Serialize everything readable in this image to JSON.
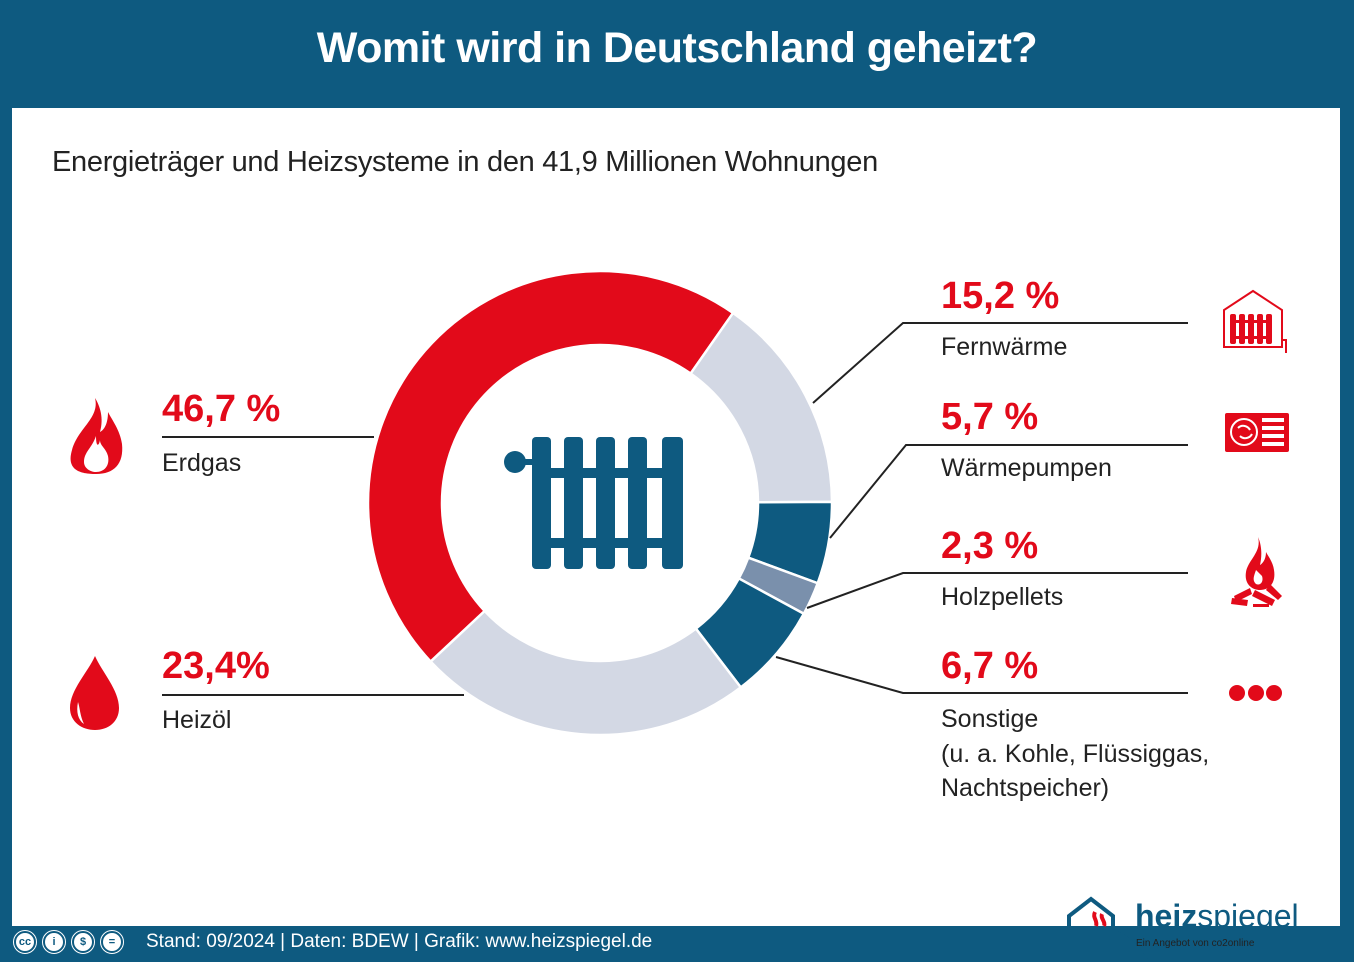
{
  "header": {
    "title": "Womit wird in Deutschland geheizt?"
  },
  "subtitle": "Energieträger und Heizsysteme in den 41,9 Millionen Wohnungen",
  "colors": {
    "brand_blue": "#0e5a80",
    "accent_red": "#e20a1a",
    "light_gray": "#d3d8e4",
    "gray_blue": "#7a90ac"
  },
  "chart_data": {
    "type": "pie",
    "variant": "donut",
    "title": "Energieträger und Heizsysteme in den 41,9 Millionen Wohnungen",
    "unit": "%",
    "categories": [
      "Erdgas",
      "Fernwärme",
      "Wärmepumpen",
      "Holzpellets",
      "Sonstige",
      "Heizöl"
    ],
    "values": [
      46.7,
      15.2,
      5.7,
      2.3,
      6.7,
      23.4
    ],
    "slice_colors": [
      "#e20a1a",
      "#d3d8e4",
      "#0e5a80",
      "#7a90ac",
      "#0e5a80",
      "#d3d8e4"
    ],
    "center_icon": "radiator-icon"
  },
  "items": {
    "erdgas": {
      "pct": "46,7 %",
      "label": "Erdgas",
      "icon": "flame-icon"
    },
    "heizoel": {
      "pct": "23,4%",
      "label": "Heizöl",
      "icon": "oil-drop-icon"
    },
    "fernwaerme": {
      "pct": "15,2 %",
      "label": "Fernwärme",
      "icon": "district-heating-house-icon"
    },
    "waermepumpen": {
      "pct": "5,7 %",
      "label": "Wärmepumpen",
      "icon": "heat-pump-icon"
    },
    "holzpellets": {
      "pct": "2,3 %",
      "label": "Holzpellets",
      "icon": "wood-fire-icon"
    },
    "sonstige": {
      "pct": "6,7 %",
      "label": "Sonstige",
      "label_line2": "(u. a. Kohle, Flüssiggas,",
      "label_line3": "Nachtspeicher)",
      "icon": "more-dots-icon"
    }
  },
  "footer": {
    "text": "Stand: 09/2024 | Daten: BDEW  | Grafik: www.heizspiegel.de",
    "license_icons": [
      "cc",
      "by",
      "nc",
      "nd"
    ],
    "logo_bold": "heiz",
    "logo_light": "spiegel",
    "logo_tagline": "Ein Angebot von co2online"
  }
}
